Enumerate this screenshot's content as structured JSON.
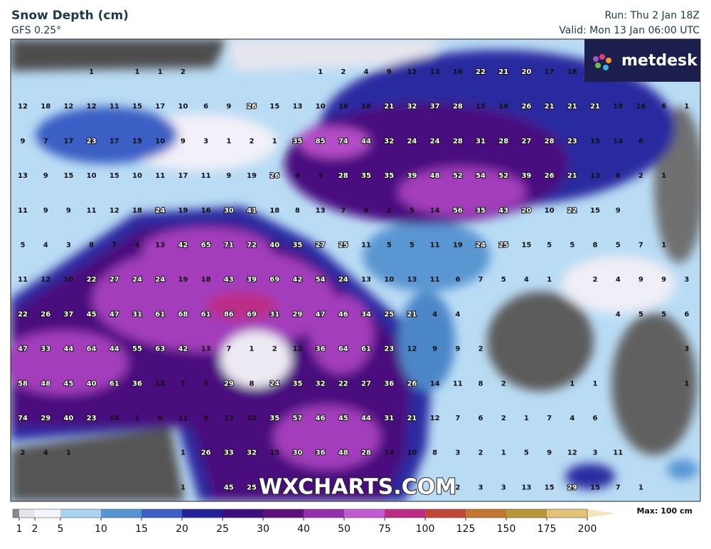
{
  "header": {
    "title": "Snow Depth (cm)",
    "subtitle": "GFS 0.25°",
    "run": "Run: Thu 2 Jan 18Z",
    "valid": "Valid: Mon 13 Jan 06:00 UTC"
  },
  "logo": "metdesk",
  "watermark": "WXCHARTS.COM",
  "grid_values": [
    [
      null,
      null,
      null,
      1,
      null,
      1,
      1,
      2,
      null,
      null,
      null,
      null,
      null,
      1,
      2,
      4,
      9,
      12,
      13,
      16,
      22,
      21,
      20,
      17,
      18,
      null,
      null,
      null,
      null,
      null
    ],
    [
      12,
      18,
      12,
      12,
      11,
      15,
      17,
      10,
      6,
      9,
      26,
      15,
      13,
      10,
      16,
      16,
      21,
      32,
      37,
      28,
      15,
      16,
      26,
      21,
      21,
      21,
      19,
      16,
      6,
      1
    ],
    [
      9,
      7,
      17,
      23,
      17,
      15,
      10,
      9,
      3,
      1,
      2,
      1,
      35,
      85,
      74,
      44,
      32,
      24,
      24,
      28,
      31,
      28,
      27,
      28,
      23,
      15,
      14,
      6,
      null,
      null
    ],
    [
      13,
      9,
      15,
      10,
      15,
      10,
      11,
      17,
      11,
      9,
      19,
      26,
      9,
      3,
      28,
      35,
      35,
      39,
      48,
      52,
      54,
      52,
      39,
      26,
      21,
      13,
      6,
      2,
      1,
      null
    ],
    [
      11,
      9,
      9,
      11,
      12,
      18,
      24,
      19,
      16,
      30,
      41,
      18,
      8,
      13,
      7,
      9,
      2,
      5,
      14,
      56,
      35,
      43,
      20,
      10,
      22,
      15,
      9,
      null,
      null,
      null
    ],
    [
      5,
      4,
      3,
      8,
      7,
      4,
      13,
      42,
      65,
      71,
      72,
      40,
      35,
      27,
      25,
      11,
      5,
      5,
      11,
      19,
      24,
      25,
      15,
      5,
      5,
      8,
      5,
      7,
      1,
      null
    ],
    [
      11,
      12,
      10,
      22,
      27,
      24,
      24,
      19,
      18,
      43,
      39,
      69,
      42,
      54,
      24,
      13,
      10,
      13,
      11,
      6,
      7,
      5,
      4,
      1,
      null,
      2,
      4,
      9,
      9,
      3
    ],
    [
      22,
      26,
      37,
      45,
      47,
      31,
      61,
      68,
      61,
      86,
      69,
      31,
      29,
      47,
      46,
      34,
      25,
      21,
      4,
      4,
      null,
      null,
      null,
      null,
      null,
      null,
      4,
      5,
      5,
      6
    ],
    [
      47,
      33,
      44,
      64,
      44,
      55,
      63,
      42,
      13,
      7,
      1,
      2,
      12,
      36,
      64,
      61,
      23,
      12,
      9,
      9,
      2,
      null,
      null,
      null,
      null,
      null,
      null,
      null,
      null,
      3
    ],
    [
      58,
      48,
      45,
      40,
      61,
      36,
      18,
      7,
      5,
      29,
      8,
      24,
      35,
      32,
      22,
      27,
      36,
      26,
      14,
      11,
      8,
      2,
      null,
      null,
      1,
      1,
      null,
      null,
      null,
      1
    ],
    [
      74,
      29,
      40,
      23,
      10,
      1,
      6,
      11,
      9,
      13,
      10,
      35,
      57,
      46,
      45,
      44,
      31,
      21,
      12,
      7,
      6,
      2,
      1,
      7,
      4,
      6,
      null,
      null,
      null,
      null
    ],
    [
      2,
      4,
      1,
      null,
      null,
      null,
      null,
      1,
      26,
      33,
      32,
      15,
      30,
      36,
      48,
      28,
      14,
      10,
      8,
      3,
      2,
      1,
      5,
      9,
      12,
      3,
      11,
      null,
      null,
      null
    ],
    [
      null,
      null,
      null,
      null,
      null,
      null,
      null,
      1,
      null,
      45,
      25,
      null,
      null,
      null,
      null,
      null,
      null,
      null,
      null,
      2,
      3,
      3,
      13,
      15,
      29,
      15,
      7,
      1,
      null,
      null
    ]
  ],
  "legend": {
    "ticks": [
      1,
      2,
      5,
      10,
      15,
      20,
      25,
      30,
      40,
      50,
      75,
      100,
      125,
      150,
      175,
      200
    ],
    "colors": [
      "#8a8a8a",
      "#e8e4ec",
      "#f4f4fb",
      "#a9d3f2",
      "#5595d3",
      "#3b5fc4",
      "#24229a",
      "#3c0f7e",
      "#5e0f78",
      "#9330ad",
      "#c25bd2",
      "#bd2b84",
      "#c0463a",
      "#c27630",
      "#b8963a",
      "#e3c277",
      "#f3e6bd"
    ],
    "max_label": "Max: 100 cm"
  }
}
